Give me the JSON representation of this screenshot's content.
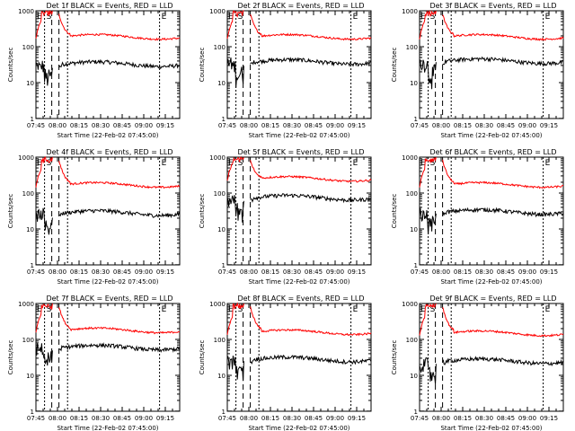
{
  "chart_data": {
    "type": "line",
    "xlabel": "Start Time (22-Feb-02 07:45:00)",
    "ylabel": "Counts/sec",
    "ylim": [
      1,
      1000
    ],
    "y_scale": "log",
    "y_tick_labels": [
      "1",
      "10",
      "100",
      "1000"
    ],
    "x_range_minutes_after_0745": [
      0,
      100
    ],
    "x_tick_labels": [
      "07:45",
      "08:00",
      "08:15",
      "08:30",
      "08:45",
      "09:00",
      "09:15"
    ],
    "marker_labels": {
      "S": "S",
      "E": "E"
    },
    "colors": {
      "events": "#000000",
      "lld": "#ff0000"
    },
    "panels": [
      {
        "title": "Det 1f BLACK = Events, RED = LLD",
        "series": [
          {
            "name": "Events",
            "color": "black",
            "level": 33
          },
          {
            "name": "LLD",
            "color": "red",
            "level": 190
          }
        ]
      },
      {
        "title": "Det 2f BLACK = Events, RED = LLD",
        "series": [
          {
            "name": "Events",
            "color": "black",
            "level": 38
          },
          {
            "name": "LLD",
            "color": "red",
            "level": 190
          }
        ]
      },
      {
        "title": "Det 3f BLACK = Events, RED = LLD",
        "series": [
          {
            "name": "Events",
            "color": "black",
            "level": 40
          },
          {
            "name": "LLD",
            "color": "red",
            "level": 190
          }
        ]
      },
      {
        "title": "Det 4f BLACK = Events, RED = LLD",
        "series": [
          {
            "name": "Events",
            "color": "black",
            "level": 28
          },
          {
            "name": "LLD",
            "color": "red",
            "level": 170
          }
        ]
      },
      {
        "title": "Det 5f BLACK = Events, RED = LLD",
        "series": [
          {
            "name": "Events",
            "color": "black",
            "level": 75
          },
          {
            "name": "LLD",
            "color": "red",
            "level": 250
          }
        ]
      },
      {
        "title": "Det 6f BLACK = Events, RED = LLD",
        "series": [
          {
            "name": "Events",
            "color": "black",
            "level": 30
          },
          {
            "name": "LLD",
            "color": "red",
            "level": 170
          }
        ]
      },
      {
        "title": "Det 7f BLACK = Events, RED = LLD",
        "series": [
          {
            "name": "Events",
            "color": "black",
            "level": 60
          },
          {
            "name": "LLD",
            "color": "red",
            "level": 180
          }
        ]
      },
      {
        "title": "Det 8f BLACK = Events, RED = LLD",
        "series": [
          {
            "name": "Events",
            "color": "black",
            "level": 28
          },
          {
            "name": "LLD",
            "color": "red",
            "level": 160
          }
        ]
      },
      {
        "title": "Det 9f BLACK = Events, RED = LLD",
        "series": [
          {
            "name": "Events",
            "color": "black",
            "level": 25
          },
          {
            "name": "LLD",
            "color": "red",
            "level": 150
          }
        ]
      }
    ]
  }
}
